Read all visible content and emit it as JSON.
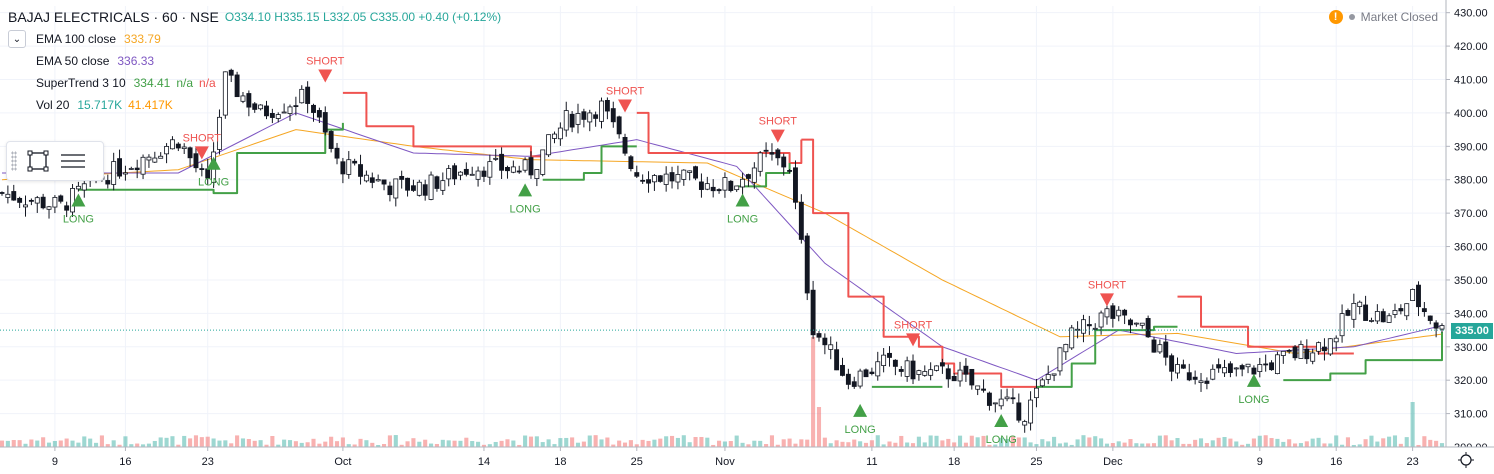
{
  "header": {
    "symbol": "BAJAJ ELECTRICALS · 60 · NSE",
    "open": "O334.10",
    "high": "H335.15",
    "low": "L332.05",
    "close": "C335.00",
    "change": "+0.40 (+0.12%)"
  },
  "indicators": [
    {
      "name": "EMA 100 close",
      "values": [
        "333.79"
      ],
      "color": "#f5a623"
    },
    {
      "name": "EMA 50 close",
      "values": [
        "336.33"
      ],
      "color": "#7e57c2"
    },
    {
      "name": "SuperTrend 3 10",
      "values": [
        "334.41",
        "n/a",
        "n/a"
      ],
      "color": "#43a047"
    },
    {
      "name": "Vol 20",
      "values": [
        "15.717K",
        "41.417K"
      ],
      "color": "#26a69a"
    }
  ],
  "status": {
    "label": "Market Closed"
  },
  "last_price": "335.00",
  "colors": {
    "up": "#26a69a",
    "down": "#ef5350",
    "candle": "#131722",
    "long": "#43a047",
    "short": "#ef5350"
  },
  "chart_data": {
    "type": "candlestick",
    "ylim": [
      300,
      432
    ],
    "yticks": [
      300,
      310,
      320,
      330,
      340,
      350,
      360,
      370,
      380,
      390,
      400,
      410,
      420,
      430
    ],
    "ytick_labels": [
      "300.00",
      "310.00",
      "320.00",
      "330.00",
      "340.00",
      "350.00",
      "360.00",
      "370.00",
      "380.00",
      "390.00",
      "400.00",
      "410.00",
      "420.00",
      "430.00"
    ],
    "x_tick_labels": [
      "9",
      "16",
      "23",
      "Oct",
      "14",
      "18",
      "25",
      "Nov",
      "11",
      "18",
      "25",
      "Dec",
      "9",
      "16",
      "23"
    ],
    "x_tick_index": [
      9,
      21,
      35,
      58,
      82,
      95,
      108,
      123,
      148,
      162,
      176,
      189,
      214,
      227,
      240
    ],
    "n_bars": 246,
    "close_anchors": [
      [
        0,
        376
      ],
      [
        10,
        372
      ],
      [
        16,
        380
      ],
      [
        22,
        385
      ],
      [
        30,
        392
      ],
      [
        35,
        378
      ],
      [
        38,
        410
      ],
      [
        44,
        400
      ],
      [
        52,
        405
      ],
      [
        57,
        385
      ],
      [
        66,
        378
      ],
      [
        72,
        378
      ],
      [
        80,
        384
      ],
      [
        90,
        383
      ],
      [
        96,
        398
      ],
      [
        102,
        402
      ],
      [
        108,
        382
      ],
      [
        116,
        380
      ],
      [
        124,
        378
      ],
      [
        130,
        387
      ],
      [
        134,
        384
      ],
      [
        138,
        336
      ],
      [
        144,
        320
      ],
      [
        150,
        325
      ],
      [
        156,
        322
      ],
      [
        162,
        322
      ],
      [
        168,
        315
      ],
      [
        174,
        310
      ],
      [
        182,
        333
      ],
      [
        188,
        340
      ],
      [
        194,
        335
      ],
      [
        200,
        322
      ],
      [
        210,
        322
      ],
      [
        216,
        325
      ],
      [
        226,
        332
      ],
      [
        230,
        342
      ],
      [
        236,
        338
      ],
      [
        240,
        345
      ],
      [
        245,
        335
      ]
    ],
    "series": [
      {
        "name": "EMA 100 close",
        "anchors": [
          [
            0,
            380
          ],
          [
            30,
            383
          ],
          [
            50,
            395
          ],
          [
            70,
            390
          ],
          [
            90,
            386
          ],
          [
            120,
            385
          ],
          [
            140,
            370
          ],
          [
            160,
            350
          ],
          [
            180,
            333
          ],
          [
            200,
            334
          ],
          [
            220,
            328
          ],
          [
            245,
            333.79
          ]
        ]
      },
      {
        "name": "EMA 50 close",
        "anchors": [
          [
            0,
            382
          ],
          [
            30,
            382
          ],
          [
            50,
            400
          ],
          [
            70,
            388
          ],
          [
            90,
            387
          ],
          [
            108,
            392
          ],
          [
            125,
            384
          ],
          [
            140,
            355
          ],
          [
            160,
            330
          ],
          [
            176,
            320
          ],
          [
            190,
            335
          ],
          [
            210,
            328
          ],
          [
            230,
            330
          ],
          [
            245,
            336.33
          ]
        ]
      },
      {
        "name": "SuperTrend 3 10",
        "segments": [
          {
            "dir": "up",
            "points": [
              [
                13,
                377
              ],
              [
                23,
                377
              ],
              [
                36,
                376
              ],
              [
                40,
                388
              ],
              [
                55,
                395
              ],
              [
                58,
                397
              ]
            ]
          },
          {
            "dir": "down",
            "points": [
              [
                58,
                406
              ],
              [
                62,
                396
              ],
              [
                70,
                390
              ],
              [
                90,
                387
              ],
              [
                92,
                387
              ]
            ]
          },
          {
            "dir": "up",
            "points": [
              [
                92,
                380
              ],
              [
                99,
                382
              ],
              [
                102,
                390
              ],
              [
                108,
                390
              ]
            ]
          },
          {
            "dir": "down",
            "points": [
              [
                108,
                400
              ],
              [
                110,
                388
              ],
              [
                122,
                388
              ],
              [
                134,
                385
              ],
              [
                136,
                392
              ]
            ]
          },
          {
            "dir": "up",
            "points": [
              [
                125,
                378
              ],
              [
                130,
                382
              ],
              [
                134,
                385
              ]
            ]
          },
          {
            "dir": "down",
            "points": [
              [
                136,
                392
              ],
              [
                138,
                370
              ],
              [
                144,
                345
              ],
              [
                150,
                333
              ],
              [
                156,
                330
              ],
              [
                160,
                325
              ],
              [
                162,
                322
              ],
              [
                170,
                318
              ],
              [
                176,
                318
              ]
            ]
          },
          {
            "dir": "up",
            "points": [
              [
                148,
                318
              ],
              [
                155,
                318
              ],
              [
                160,
                318
              ]
            ]
          },
          {
            "dir": "up",
            "points": [
              [
                176,
                318
              ],
              [
                182,
                325
              ],
              [
                186,
                335
              ],
              [
                196,
                336
              ],
              [
                200,
                336
              ]
            ]
          },
          {
            "dir": "down",
            "points": [
              [
                200,
                345
              ],
              [
                204,
                336
              ],
              [
                212,
                330
              ],
              [
                224,
                328
              ],
              [
                230,
                328
              ]
            ]
          },
          {
            "dir": "up",
            "points": [
              [
                218,
                320
              ],
              [
                226,
                322
              ],
              [
                232,
                326
              ],
              [
                245,
                334.41
              ]
            ]
          }
        ]
      },
      {
        "name": "Vol 20"
      }
    ],
    "signals": [
      {
        "type": "LONG",
        "index": 13,
        "price": 372
      },
      {
        "type": "SHORT",
        "index": 34,
        "price": 390
      },
      {
        "type": "LONG",
        "index": 36,
        "price": 383
      },
      {
        "type": "SHORT",
        "index": 55,
        "price": 413
      },
      {
        "type": "LONG",
        "index": 89,
        "price": 375
      },
      {
        "type": "SHORT",
        "index": 106,
        "price": 404
      },
      {
        "type": "LONG",
        "index": 126,
        "price": 372
      },
      {
        "type": "SHORT",
        "index": 132,
        "price": 395
      },
      {
        "type": "LONG",
        "index": 146,
        "price": 309
      },
      {
        "type": "SHORT",
        "index": 155,
        "price": 334
      },
      {
        "type": "LONG",
        "index": 170,
        "price": 306
      },
      {
        "type": "SHORT",
        "index": 188,
        "price": 346
      },
      {
        "type": "LONG",
        "index": 213,
        "price": 318
      }
    ]
  }
}
